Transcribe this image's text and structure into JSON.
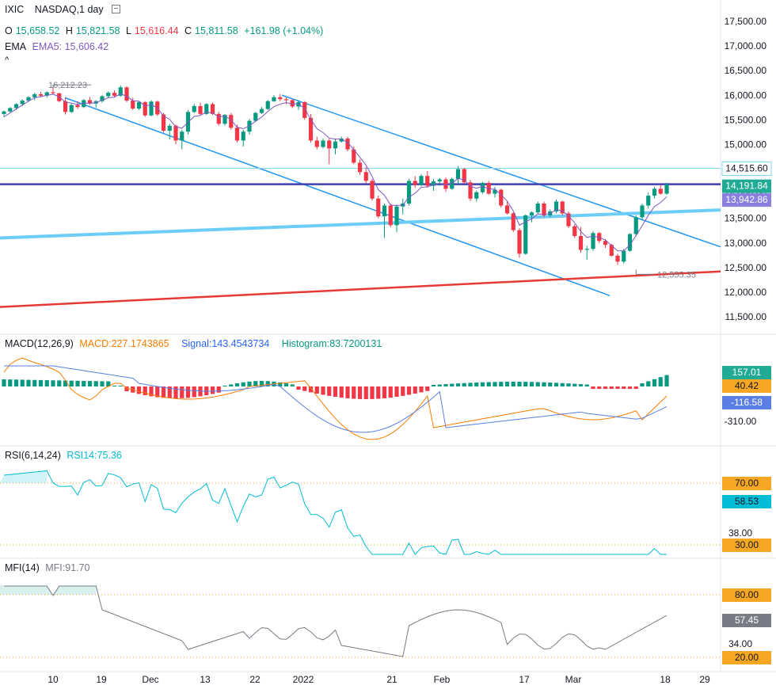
{
  "header": {
    "symbol": "IXIC",
    "exchange_interval": "NASDAQ,1 day",
    "ohlc": {
      "o_label": "O",
      "o": "15,658.52",
      "h_label": "H",
      "h": "15,821.58",
      "l_label": "L",
      "l": "15,616.44",
      "c_label": "C",
      "c": "15,811.58",
      "change": "+161.98 (+1.04%)"
    },
    "ema_label": "EMA",
    "ema_value": "EMA5: 15,606.42",
    "collapse_glyph": "^"
  },
  "chart_data": {
    "type": "candlestick",
    "price_axis": {
      "ticks": [
        "17,500.00",
        "17,000.00",
        "16,500.00",
        "16,000.00",
        "15,500.00",
        "15,000.00",
        "14,500.00",
        "14,000.00",
        "13,500.00",
        "13,000.00",
        "12,500.00",
        "12,000.00",
        "11,500.00"
      ],
      "range": [
        11300,
        17600
      ]
    },
    "price_labels": {
      "resistance": "14,515.60",
      "last": "14,191.84",
      "ema": "13,942.86"
    },
    "annotations": {
      "high": "16,212.23",
      "low": "12,555.35"
    },
    "x_axis_ticks": [
      "10",
      "19",
      "Dec",
      "13",
      "22",
      "2022",
      "21",
      "Feb",
      "17",
      "Mar",
      "18",
      "29"
    ],
    "candles": [
      [
        15620,
        15690,
        15560,
        15670
      ],
      [
        15670,
        15760,
        15640,
        15740
      ],
      [
        15740,
        15840,
        15700,
        15820
      ],
      [
        15820,
        15920,
        15780,
        15890
      ],
      [
        15890,
        15980,
        15860,
        15960
      ],
      [
        15960,
        16050,
        15900,
        16020
      ],
      [
        16020,
        16070,
        15960,
        15990
      ],
      [
        15990,
        16080,
        15950,
        16060
      ],
      [
        16060,
        16212,
        16020,
        16040
      ],
      [
        16040,
        16050,
        15860,
        15880
      ],
      [
        15880,
        15950,
        15610,
        15660
      ],
      [
        15660,
        15830,
        15640,
        15800
      ],
      [
        15800,
        15880,
        15720,
        15760
      ],
      [
        15760,
        15920,
        15740,
        15900
      ],
      [
        15900,
        15960,
        15800,
        15830
      ],
      [
        15830,
        15900,
        15750,
        15880
      ],
      [
        15880,
        16000,
        15850,
        15980
      ],
      [
        15980,
        16080,
        15940,
        16050
      ],
      [
        16050,
        16100,
        15960,
        15990
      ],
      [
        15990,
        16200,
        15970,
        16160
      ],
      [
        16160,
        16180,
        15860,
        15890
      ],
      [
        15890,
        15950,
        15700,
        15730
      ],
      [
        15730,
        15880,
        15700,
        15860
      ],
      [
        15860,
        15880,
        15560,
        15590
      ],
      [
        15590,
        15900,
        15570,
        15870
      ],
      [
        15870,
        15890,
        15580,
        15610
      ],
      [
        15610,
        15640,
        15240,
        15280
      ],
      [
        15280,
        15420,
        15100,
        15380
      ],
      [
        15380,
        15400,
        15000,
        15080
      ],
      [
        15080,
        15300,
        14900,
        15260
      ],
      [
        15260,
        15700,
        15200,
        15660
      ],
      [
        15660,
        15820,
        15640,
        15780
      ],
      [
        15780,
        15850,
        15600,
        15620
      ],
      [
        15620,
        15840,
        15600,
        15820
      ],
      [
        15820,
        15850,
        15600,
        15620
      ],
      [
        15620,
        15660,
        15380,
        15420
      ],
      [
        15420,
        15620,
        15380,
        15600
      ],
      [
        15600,
        15640,
        15300,
        15340
      ],
      [
        15340,
        15400,
        15040,
        15080
      ],
      [
        15080,
        15300,
        14960,
        15260
      ],
      [
        15260,
        15520,
        15200,
        15480
      ],
      [
        15480,
        15660,
        15460,
        15640
      ],
      [
        15640,
        15760,
        15620,
        15720
      ],
      [
        15720,
        15900,
        15700,
        15880
      ],
      [
        15880,
        16000,
        15860,
        15960
      ],
      [
        15960,
        16020,
        15880,
        15920
      ],
      [
        15920,
        15960,
        15820,
        15900
      ],
      [
        15900,
        15920,
        15740,
        15770
      ],
      [
        15770,
        15900,
        15700,
        15860
      ],
      [
        15860,
        15880,
        15500,
        15540
      ],
      [
        15540,
        15620,
        15040,
        15080
      ],
      [
        15080,
        15160,
        14900,
        14950
      ],
      [
        14950,
        15120,
        14920,
        15080
      ],
      [
        15080,
        15120,
        14600,
        14920
      ],
      [
        14920,
        15120,
        14800,
        15060
      ],
      [
        15060,
        15160,
        15040,
        15120
      ],
      [
        15120,
        15160,
        14860,
        14900
      ],
      [
        14900,
        14960,
        14600,
        14630
      ],
      [
        14630,
        14700,
        14380,
        14440
      ],
      [
        14440,
        14540,
        14200,
        14260
      ],
      [
        14260,
        14300,
        13860,
        13900
      ],
      [
        13900,
        13960,
        13500,
        13540
      ],
      [
        13540,
        13800,
        13100,
        13760
      ],
      [
        13760,
        13800,
        13320,
        13360
      ],
      [
        13360,
        13780,
        13220,
        13740
      ],
      [
        13740,
        13900,
        13580,
        13800
      ],
      [
        13800,
        14300,
        13760,
        14260
      ],
      [
        14260,
        14360,
        14120,
        14180
      ],
      [
        14180,
        14400,
        14150,
        14360
      ],
      [
        14360,
        14460,
        14120,
        14160
      ],
      [
        14160,
        14300,
        14060,
        14250
      ],
      [
        14250,
        14320,
        14160,
        14290
      ],
      [
        14290,
        14330,
        14040,
        14100
      ],
      [
        14100,
        14330,
        14080,
        14300
      ],
      [
        14300,
        14560,
        14180,
        14500
      ],
      [
        14500,
        14520,
        14200,
        14230
      ],
      [
        14230,
        14280,
        13850,
        13900
      ],
      [
        13900,
        14060,
        13840,
        14030
      ],
      [
        14030,
        14240,
        14000,
        14220
      ],
      [
        14220,
        14260,
        13980,
        14000
      ],
      [
        14000,
        14140,
        13920,
        14080
      ],
      [
        14080,
        14100,
        13720,
        13760
      ],
      [
        13760,
        13840,
        13580,
        13600
      ],
      [
        13600,
        13620,
        13220,
        13260
      ],
      [
        13260,
        13300,
        12700,
        12780
      ],
      [
        12780,
        13580,
        12760,
        13560
      ],
      [
        13560,
        13640,
        13420,
        13620
      ],
      [
        13620,
        13840,
        13580,
        13800
      ],
      [
        13800,
        13840,
        13520,
        13560
      ],
      [
        13560,
        13680,
        13520,
        13640
      ],
      [
        13640,
        13880,
        13600,
        13840
      ],
      [
        13840,
        13860,
        13560,
        13600
      ],
      [
        13600,
        13640,
        13300,
        13340
      ],
      [
        13340,
        13380,
        13100,
        13140
      ],
      [
        13140,
        13320,
        12800,
        12860
      ],
      [
        12860,
        12940,
        12660,
        12880
      ],
      [
        12880,
        13240,
        12840,
        13200
      ],
      [
        13200,
        13220,
        13000,
        13040
      ],
      [
        13040,
        13080,
        12900,
        12960
      ],
      [
        12960,
        12980,
        12720,
        12740
      ],
      [
        12740,
        12780,
        12555,
        12620
      ],
      [
        12620,
        12880,
        12580,
        12840
      ],
      [
        12840,
        13200,
        12820,
        13180
      ],
      [
        13180,
        13560,
        13140,
        13520
      ],
      [
        13520,
        13800,
        13480,
        13760
      ],
      [
        13760,
        14020,
        13700,
        13960
      ],
      [
        13960,
        14140,
        13900,
        14100
      ],
      [
        14100,
        14180,
        13980,
        14000
      ],
      [
        14000,
        14220,
        13980,
        14190
      ]
    ],
    "ema5": [
      15560,
      15640,
      15720,
      15800,
      15880,
      15950,
      15970,
      16000,
      16020,
      15970,
      15860,
      15840,
      15810,
      15840,
      15840,
      15850,
      15900,
      15950,
      15960,
      16030,
      15980,
      15890,
      15880,
      15780,
      15810,
      15740,
      15580,
      15510,
      15360,
      15330,
      15450,
      15570,
      15590,
      15660,
      15640,
      15560,
      15580,
      15500,
      15350,
      15320,
      15380,
      15470,
      15560,
      15670,
      15770,
      15820,
      15850,
      15820,
      15830,
      15730,
      15510,
      15320,
      15240,
      15130,
      15110,
      15110,
      15040,
      14900,
      14740,
      14580,
      14350,
      14080,
      13970,
      13770,
      13760,
      13770,
      13930,
      14010,
      14130,
      14140,
      14180,
      14210,
      14170,
      14210,
      14310,
      14280,
      14150,
      14110,
      14150,
      14100,
      14090,
      13980,
      13850,
      13650,
      13360,
      13430,
      13490,
      13590,
      13580,
      13600,
      13680,
      13650,
      13550,
      13410,
      13230,
      13110,
      13140,
      13110,
      13060,
      12950,
      12840,
      12840,
      12960,
      13150,
      13350,
      13560,
      13740,
      13820,
      13942
    ]
  },
  "macd": {
    "title": "MACD(12,26,9)",
    "macd_value": "MACD:227.1743865",
    "signal_value": "Signal:143.4543734",
    "histogram_value": "Histogram:83.7200131",
    "axis_labels": {
      "hist": "157.01",
      "macd": "40.42",
      "signal": "-116.58",
      "tick": "-310.00"
    }
  },
  "rsi": {
    "title": "RSI(6,14,24)",
    "value": "RSI14:75.36",
    "axis_labels": {
      "upper": "70.00",
      "current": "58.53",
      "mid": "38.00",
      "lower": "30.00"
    }
  },
  "mfi": {
    "title": "MFI(14)",
    "value": "MFI:91.70",
    "axis_labels": {
      "upper": "80.00",
      "current": "57.45",
      "mid": "34.00",
      "lower": "20.00"
    }
  },
  "colors": {
    "up": "#089981",
    "down": "#f23645",
    "ema": "#7e57c2",
    "channel": "#2196f3",
    "support": "#6ccdf7",
    "red_trend": "#e53935",
    "resistance": "#3f3fb8",
    "macd": "#f57c00",
    "signal": "#5b7ee5",
    "rsi": "#00bcd4",
    "mfi": "#787b86"
  }
}
